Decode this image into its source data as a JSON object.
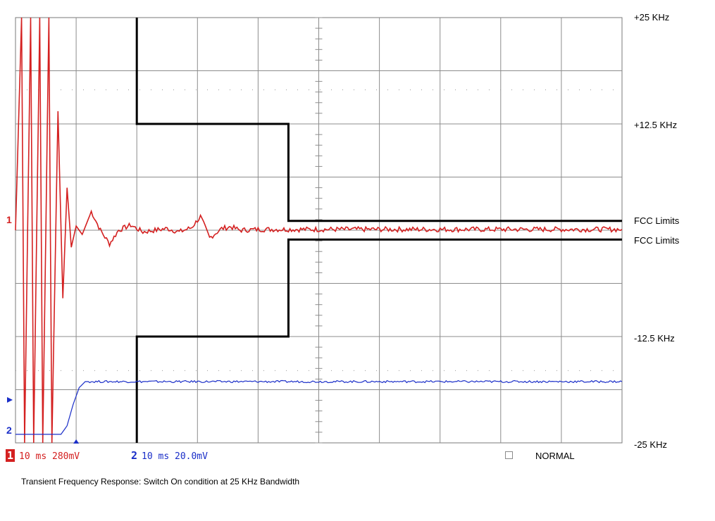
{
  "chart_data": {
    "type": "line",
    "title": "",
    "x_unit": "ms",
    "x_per_div": 10,
    "x_divisions": 10,
    "y_divisions": 8,
    "grid": true,
    "right_axis_labels": [
      "+25 KHz",
      "+12.5 KHz",
      "FCC Limits",
      "FCC Limits",
      "-12.5 KHz",
      "-25 KHz"
    ],
    "limit_mask": {
      "name": "FCC Limits",
      "upper": [
        {
          "t_ms": 20,
          "khz": 25
        },
        {
          "t_ms": 20,
          "khz": 12.5
        },
        {
          "t_ms": 45,
          "khz": 12.5
        },
        {
          "t_ms": 45,
          "khz": 1.1
        },
        {
          "t_ms": 100,
          "khz": 1.1
        }
      ],
      "lower": [
        {
          "t_ms": 20,
          "khz": -25
        },
        {
          "t_ms": 20,
          "khz": -12.5
        },
        {
          "t_ms": 45,
          "khz": -12.5
        },
        {
          "t_ms": 45,
          "khz": -1.1
        },
        {
          "t_ms": 100,
          "khz": -1.1
        }
      ]
    },
    "series": [
      {
        "channel": "1",
        "color": "#d42020",
        "timebase": "10 ms",
        "scale": "280mV",
        "description_points_ms_khz": [
          [
            0,
            0
          ],
          [
            1,
            25
          ],
          [
            1.5,
            -25
          ],
          [
            2.5,
            25
          ],
          [
            3,
            -25
          ],
          [
            4,
            25
          ],
          [
            4.5,
            -25
          ],
          [
            5.5,
            25
          ],
          [
            6,
            -25
          ],
          [
            7,
            14
          ],
          [
            7.8,
            -8
          ],
          [
            8.5,
            5
          ],
          [
            9.2,
            -2
          ],
          [
            10,
            0.5
          ],
          [
            11,
            -0.5
          ],
          [
            12.5,
            2.2
          ],
          [
            14,
            0
          ],
          [
            15.5,
            -1.6
          ],
          [
            17,
            0
          ],
          [
            19,
            0.6
          ],
          [
            21,
            -0.2
          ],
          [
            23,
            0
          ],
          [
            25,
            0.2
          ],
          [
            27,
            -0.2
          ],
          [
            29,
            0.3
          ],
          [
            30.5,
            1.6
          ],
          [
            32,
            -0.9
          ],
          [
            34,
            0.2
          ],
          [
            35.5,
            0.4
          ],
          [
            37,
            0
          ],
          [
            40,
            0.1
          ],
          [
            100,
            0.1
          ]
        ]
      },
      {
        "channel": "2",
        "color": "#1a2ec8",
        "timebase": "10 ms",
        "scale": "20.0mV",
        "description_points_ms_khz": [
          [
            0,
            -24
          ],
          [
            7.5,
            -24
          ],
          [
            8.5,
            -23
          ],
          [
            9.5,
            -20.5
          ],
          [
            10.5,
            -18.5
          ],
          [
            11.5,
            -17.8
          ],
          [
            100,
            -17.8
          ]
        ]
      }
    ],
    "trigger_marker_ms": 10
  },
  "channels": [
    {
      "num": "1",
      "text": "10 ms 280mV",
      "color": "#d42020"
    },
    {
      "num": "2",
      "text": "10 ms 20.0mV",
      "color": "#1a2ec8"
    }
  ],
  "mode": "NORMAL",
  "caption": "Transient Frequency Response: Switch On condition at 25 KHz Bandwidth",
  "markers": {
    "ch1": "1",
    "ch2": "2"
  }
}
